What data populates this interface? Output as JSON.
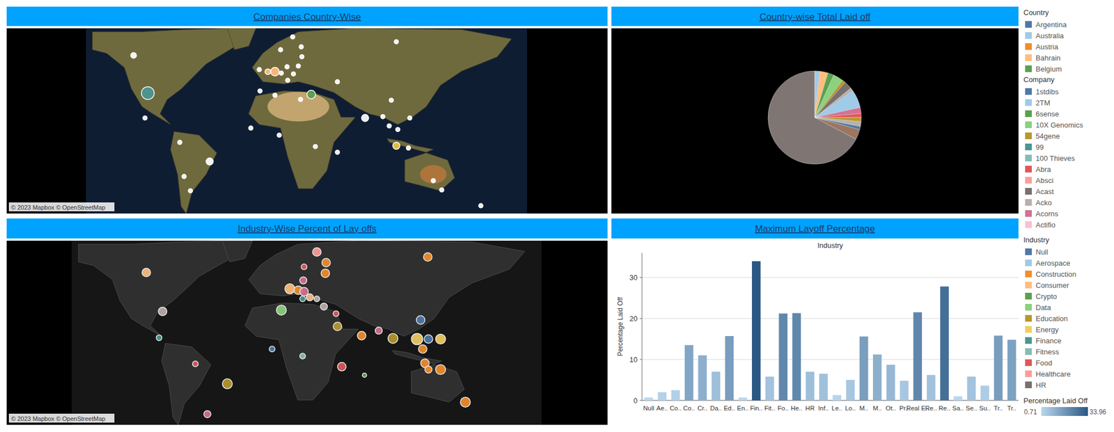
{
  "chart_data": [
    {
      "type": "map",
      "title": "Companies Country-Wise",
      "annotation": "© 2023 Mapbox © OpenStreetMap",
      "tick_labels": false,
      "xlim": [
        -180,
        180
      ],
      "ylim": [
        -60,
        80
      ],
      "x": [
        -141.2,
        -129.6,
        -131.9,
        -103.5,
        -79.1,
        -100,
        -94.8,
        -38.6,
        -31.6,
        -25.8,
        -20.6,
        -15.9,
        -21.2,
        -11.3,
        -4.3,
        -3.8,
        -6.7,
        -10.7,
        -15.4,
        3.8,
        -4.9,
        -38,
        -25.8,
        -45.5,
        -22.3,
        7.2,
        25.2,
        47.8,
        69.2,
        73.3,
        62.3,
        67.5,
        73.3,
        83.2,
        84.3,
        74.5,
        103.5,
        110.4,
        142.3,
        25.2
      ],
      "y": [
        59.5,
        31.0,
        12.2,
        -6.2,
        -20.7,
        -32,
        -42.8,
        48.8,
        47.2,
        47.2,
        46.1,
        50.9,
        63.8,
        73.5,
        66,
        58.5,
        51.5,
        45.5,
        40.7,
        29.9,
        26.2,
        32.6,
        29.4,
        4.6,
        -0.8,
        -9.4,
        -13.7,
        12.2,
        25.6,
        69.8,
        13.2,
        6.2,
        -8.8,
        -10.5,
        12.2,
        3.5,
        -35.2,
        -42.2,
        -54.1,
        39.6
      ],
      "sizes": [
        4,
        9,
        3,
        3,
        5,
        3,
        3,
        3,
        4,
        6,
        3,
        3,
        3,
        3,
        3,
        3,
        3,
        3,
        3,
        6,
        3,
        3,
        3,
        3,
        3,
        3,
        3,
        5,
        3,
        3,
        3,
        3,
        5,
        3,
        3,
        3,
        3,
        3,
        3,
        3
      ],
      "colors": [
        "#ffffff",
        "#499894",
        "#ffffff",
        "#ffffff",
        "#ffffff",
        "#ffffff",
        "#ffffff",
        "#ffffff",
        "#ffbe7d",
        "#ffbe7d",
        "#ffffff",
        "#ffffff",
        "#ffffff",
        "#ffffff",
        "#ffffff",
        "#ffffff",
        "#ffffff",
        "#ffffff",
        "#ffffff",
        "#59a14f",
        "#ffffff",
        "#ffffff",
        "#ffffff",
        "#ffffff",
        "#ffffff",
        "#ffffff",
        "#ffffff",
        "#ffffff",
        "#ffffff",
        "#ffffff",
        "#ffffff",
        "#ffffff",
        "#edc948",
        "#ffffff",
        "#ffffff",
        "#ffffff",
        "#ffffff",
        "#ffffff",
        "#ffffff",
        "#ffffff"
      ]
    },
    {
      "type": "pie",
      "title": "Country-wise Total Laid off",
      "values": [
        1.8,
        2.8,
        2.1,
        3.5,
        1.1,
        2.8,
        1.1,
        6.3,
        2.1,
        1.4,
        1.4,
        1.7,
        1.1,
        3.5,
        67.3
      ],
      "colors": [
        "#a0cbe8",
        "#ffbe7d",
        "#59a14f",
        "#8cd17d",
        "#b6992d",
        "#79706e",
        "#bab0ac",
        "#a0cbe8",
        "#d37295",
        "#e15759",
        "#b6992d",
        "#bab0ac",
        "#4e79a7",
        "#9d7660",
        "#7f7673"
      ]
    },
    {
      "type": "map",
      "title": "Industry-Wise Percent of Lay offs",
      "annotation": "© 2023 Mapbox © OpenStreetMap",
      "tick_labels": false,
      "xlim": [
        -180,
        180
      ],
      "ylim": [
        -60,
        80
      ],
      "x": [
        -122.8,
        -110.3,
        -113,
        -85.2,
        -60.7,
        -76,
        -26.4,
        -19.3,
        -12.8,
        -6.3,
        -1.9,
        2.5,
        7.9,
        -3,
        7.9,
        -1.9,
        -2.5,
        15,
        14.4,
        13.3,
        22.6,
        23.7,
        -3,
        27,
        44.4,
        42.2,
        55.3,
        66.2,
        84.7,
        93.4,
        102.7,
        87.4,
        92.9,
        89,
        90.7,
        93.4,
        102.7,
        121.7
      ],
      "y": [
        55.8,
        26.2,
        6.2,
        -13.7,
        -28.8,
        -51.9,
        -2.4,
        27.2,
        43.4,
        42.3,
        41.2,
        36.9,
        35.8,
        35.8,
        71.4,
        60.1,
        49.8,
        63.3,
        55.2,
        29.9,
        24.5,
        14.8,
        -7.8,
        -15.8,
        -22.3,
        7.8,
        11.6,
        5.7,
        5.2,
        5.2,
        5.2,
        19.7,
        67.6,
        -2.4,
        -13.2,
        -18,
        -18,
        -42.8
      ],
      "sizes": [
        6,
        6,
        4,
        4,
        7,
        5,
        4,
        7,
        7,
        6,
        6,
        5,
        4,
        4,
        6,
        4,
        5,
        6,
        6,
        5,
        4,
        6,
        4,
        6,
        3,
        6,
        5,
        7,
        8,
        6,
        7,
        6,
        6,
        6,
        6,
        5,
        7,
        7
      ],
      "colors": [
        "#ffbe7d",
        "#bab0ac",
        "#499894",
        "#e15759",
        "#b6992d",
        "#d37295",
        "#4e79a7",
        "#8cd17d",
        "#ffbe7d",
        "#f28e2b",
        "#d37295",
        "#ffbe7d",
        "#bab0ac",
        "#499894",
        "#ff9d9a",
        "#e15759",
        "#d37295",
        "#f28e2b",
        "#f28e2b",
        "#bab0ac",
        "#e15759",
        "#b6992d",
        "#86bcb6",
        "#e15759",
        "#59a14f",
        "#f28e2b",
        "#d37295",
        "#b6992d",
        "#f1ce63",
        "#4e79a7",
        "#f1ce63",
        "#4e79a7",
        "#f28e2b",
        "#f28e2b",
        "#f28e2b",
        "#f28e2b",
        "#f28e2b",
        "#f28e2b"
      ]
    },
    {
      "type": "bar",
      "title": "Maximum Layoff Percentage",
      "subtitle": "Industry",
      "y_label": "Percentage Laid Off",
      "categories": [
        "Null",
        "Ae..",
        "Co..",
        "Co..",
        "Cr..",
        "Da..",
        "Ed..",
        "En..",
        "Fin..",
        "Fit..",
        "Fo..",
        "He..",
        "HR",
        "Inf..",
        "Le..",
        "Lo..",
        "M..",
        "M..",
        "Ot..",
        "Pr..",
        "Real E..",
        "Re..",
        "Re..",
        "Sa..",
        "Se..",
        "Su..",
        "Tr..",
        "Tr.."
      ],
      "values": [
        0.71,
        2,
        2.5,
        13.5,
        11,
        7,
        15.7,
        0.7,
        33.96,
        5.8,
        21.2,
        21.3,
        7,
        6.5,
        1.3,
        5,
        15.6,
        11.2,
        8.7,
        4.8,
        21.5,
        6.2,
        27.8,
        1,
        5.8,
        3.6,
        15.8,
        14.8
      ],
      "ylim": [
        0,
        36
      ],
      "yticks": [
        0,
        10,
        20,
        30
      ],
      "grid": true
    }
  ],
  "legends": [
    {
      "title": "Country",
      "items": [
        {
          "label": "Argentina",
          "color": "#4e79a7"
        },
        {
          "label": "Australia",
          "color": "#a0cbe8"
        },
        {
          "label": "Austria",
          "color": "#f28e2b"
        },
        {
          "label": "Bahrain",
          "color": "#ffbe7d"
        },
        {
          "label": "Belgium",
          "color": "#59a14f"
        }
      ]
    },
    {
      "title": "Company",
      "items": [
        {
          "label": "1stdibs",
          "color": "#4e79a7"
        },
        {
          "label": "2TM",
          "color": "#a0cbe8"
        },
        {
          "label": "6sense",
          "color": "#59a14f"
        },
        {
          "label": "10X Genomics",
          "color": "#8cd17d"
        },
        {
          "label": "54gene",
          "color": "#b6992d"
        },
        {
          "label": "99",
          "color": "#499894"
        },
        {
          "label": "100 Thieves",
          "color": "#86bcb6"
        },
        {
          "label": "Abra",
          "color": "#e15759"
        },
        {
          "label": "Absci",
          "color": "#ff9d9a"
        },
        {
          "label": "Acast",
          "color": "#79706e"
        },
        {
          "label": "Acko",
          "color": "#bab0ac"
        },
        {
          "label": "Acorns",
          "color": "#d37295"
        },
        {
          "label": "Actifio",
          "color": "#fabfd2"
        }
      ]
    },
    {
      "title": "Industry",
      "items": [
        {
          "label": "Null",
          "color": "#4e79a7"
        },
        {
          "label": "Aerospace",
          "color": "#a0cbe8"
        },
        {
          "label": "Construction",
          "color": "#f28e2b"
        },
        {
          "label": "Consumer",
          "color": "#ffbe7d"
        },
        {
          "label": "Crypto",
          "color": "#59a14f"
        },
        {
          "label": "Data",
          "color": "#8cd17d"
        },
        {
          "label": "Education",
          "color": "#b6992d"
        },
        {
          "label": "Energy",
          "color": "#f1ce63"
        },
        {
          "label": "Finance",
          "color": "#499894"
        },
        {
          "label": "Fitness",
          "color": "#86bcb6"
        },
        {
          "label": "Food",
          "color": "#e15759"
        },
        {
          "label": "Healthcare",
          "color": "#ff9d9a"
        },
        {
          "label": "HR",
          "color": "#79706e"
        }
      ]
    },
    {
      "title": "Percentage Laid Off",
      "range": [
        0.71,
        33.96
      ],
      "colors": [
        "#b9d7ee",
        "#2a5783"
      ]
    }
  ]
}
